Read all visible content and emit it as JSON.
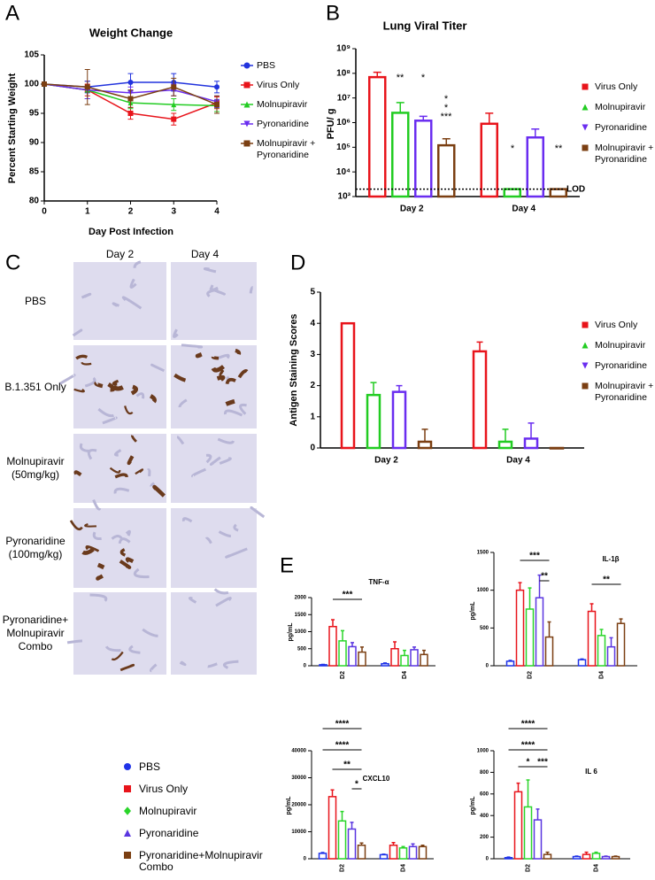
{
  "chart_data": [
    {
      "panel": "A",
      "type": "line",
      "title": "Weight Change",
      "xlabel": "Day Post Infection",
      "ylabel": "Percent Starting Weight",
      "x": [
        0,
        1,
        2,
        3,
        4
      ],
      "xlim": [
        0,
        4
      ],
      "xticks": [
        0,
        1,
        2,
        3,
        4
      ],
      "ylim": [
        80,
        105
      ],
      "yticks": [
        80,
        85,
        90,
        95,
        100,
        105
      ],
      "series": [
        {
          "name": "PBS",
          "color": "#2233dd",
          "marker": "circle",
          "values": [
            100,
            99.5,
            100.3,
            100.3,
            99.5
          ],
          "errors": [
            0,
            1,
            1.5,
            1.5,
            1
          ]
        },
        {
          "name": "Virus Only",
          "color": "#e8141b",
          "marker": "square",
          "values": [
            100,
            99,
            95,
            94,
            96.8
          ],
          "errors": [
            0,
            1,
            1,
            1,
            1
          ]
        },
        {
          "name": "Molnupiravir",
          "color": "#22cc22",
          "marker": "triangle",
          "values": [
            100,
            99,
            96.8,
            96.5,
            96.3
          ],
          "errors": [
            0,
            1.5,
            1,
            1,
            1
          ]
        },
        {
          "name": "Pyronaridine",
          "color": "#6a2df0",
          "marker": "triangle-down",
          "values": [
            100,
            99,
            98.5,
            99,
            97
          ],
          "errors": [
            0,
            1.5,
            1,
            1,
            1
          ]
        },
        {
          "name": "Molnupiravir + Pyronaridine",
          "color": "#7b3f12",
          "marker": "square",
          "values": [
            100,
            99.5,
            97.5,
            99.5,
            96.5
          ],
          "errors": [
            0,
            3,
            1.5,
            1.5,
            1.5
          ]
        }
      ]
    },
    {
      "panel": "B",
      "type": "bar",
      "title": "Lung Viral Titer",
      "ylabel": "PFU/ g",
      "log": true,
      "categories": [
        "Day 2",
        "Day 4"
      ],
      "ylim": [
        1000,
        1000000000
      ],
      "yticks": [
        {
          "value": 1000,
          "label": "10³"
        },
        {
          "value": 10000,
          "label": "10⁴"
        },
        {
          "value": 100000,
          "label": "10⁵"
        },
        {
          "value": 1000000,
          "label": "10⁶"
        },
        {
          "value": 10000000,
          "label": "10⁷"
        },
        {
          "value": 100000000,
          "label": "10⁸"
        },
        {
          "value": 1000000000,
          "label": "10⁹"
        }
      ],
      "reference_line": {
        "value": 2000,
        "label": "LOD"
      },
      "series": [
        {
          "name": "Virus Only",
          "color": "#e8141b",
          "marker": "square",
          "values": [
            70000000,
            900000
          ],
          "errors": [
            40000000,
            1500000
          ]
        },
        {
          "name": "Molnupiravir",
          "color": "#22cc22",
          "marker": "triangle",
          "values": [
            2500000,
            2000
          ],
          "errors": [
            4000000,
            0
          ]
        },
        {
          "name": "Pyronaridine",
          "color": "#6a2df0",
          "marker": "triangle-down",
          "values": [
            1200000,
            250000
          ],
          "errors": [
            600000,
            300000
          ]
        },
        {
          "name": "Molnupiravir + Pyronaridine",
          "color": "#7b3f12",
          "marker": "square",
          "values": [
            120000,
            2000
          ],
          "errors": [
            100000,
            0
          ]
        }
      ],
      "annotations": [
        {
          "text": "**",
          "color": "#e8141b"
        },
        {
          "text": "*",
          "color": "#e8141b"
        },
        {
          "text": "*",
          "color": "#6a2df0"
        },
        {
          "text": "*",
          "color": "#22cc22"
        },
        {
          "text": "***",
          "color": "#e8141b"
        },
        {
          "text": "*",
          "color": "#e8141b"
        },
        {
          "text": "**",
          "color": "#e8141b"
        }
      ]
    },
    {
      "panel": "D",
      "type": "bar",
      "ylabel": "Antigen Staining Scores",
      "categories": [
        "Day 2",
        "Day 4"
      ],
      "ylim": [
        0,
        5
      ],
      "yticks": [
        0,
        1,
        2,
        3,
        4,
        5
      ],
      "series": [
        {
          "name": "Virus Only",
          "color": "#e8141b",
          "marker": "square",
          "values": [
            4,
            3.1
          ],
          "errors": [
            0,
            0.3
          ]
        },
        {
          "name": "Molnupiravir",
          "color": "#22cc22",
          "marker": "triangle",
          "values": [
            1.7,
            0.2
          ],
          "errors": [
            0.4,
            0.4
          ]
        },
        {
          "name": "Pyronaridine",
          "color": "#6a2df0",
          "marker": "triangle-down",
          "values": [
            1.8,
            0.3
          ],
          "errors": [
            0.2,
            0.5
          ]
        },
        {
          "name": "Molnupiravir + Pyronaridine",
          "color": "#7b3f12",
          "marker": "square",
          "values": [
            0.2,
            0
          ],
          "errors": [
            0.4,
            0
          ]
        }
      ]
    },
    {
      "panel": "E",
      "type": "bar",
      "title": "TNF-α",
      "ylabel": "pg/mL",
      "categories": [
        "D2",
        "D4"
      ],
      "ylim": [
        0,
        2000
      ],
      "yticks": [
        0,
        500,
        1000,
        1500,
        2000
      ],
      "series": [
        {
          "name": "PBS",
          "color": "#1f33e8",
          "marker": "circle",
          "values": [
            30,
            60
          ],
          "errors": [
            10,
            20
          ]
        },
        {
          "name": "Virus Only",
          "color": "#e8141b",
          "marker": "square",
          "values": [
            1150,
            500
          ],
          "errors": [
            200,
            200
          ]
        },
        {
          "name": "Molnupiravir",
          "color": "#2ad52a",
          "marker": "diamond",
          "values": [
            730,
            300
          ],
          "errors": [
            300,
            150
          ]
        },
        {
          "name": "Pyronaridine",
          "color": "#5a36e0",
          "marker": "triangle",
          "values": [
            560,
            470
          ],
          "errors": [
            120,
            80
          ]
        },
        {
          "name": "Pyronaridine+Molnupiravir Combo",
          "color": "#7b3f12",
          "marker": "square",
          "values": [
            400,
            330
          ],
          "errors": [
            150,
            120
          ]
        }
      ],
      "annotations": [
        {
          "text": "***"
        }
      ]
    },
    {
      "type": "bar",
      "title": "IL-1β",
      "ylabel": "pg/mL",
      "categories": [
        "D2",
        "D4"
      ],
      "ylim": [
        0,
        1500
      ],
      "yticks": [
        0,
        500,
        1000,
        1500
      ],
      "series": [
        {
          "color": "#1f33e8",
          "values": [
            60,
            80
          ],
          "errors": [
            10,
            10
          ]
        },
        {
          "color": "#e8141b",
          "values": [
            1000,
            720
          ],
          "errors": [
            100,
            100
          ]
        },
        {
          "color": "#2ad52a",
          "values": [
            750,
            400
          ],
          "errors": [
            280,
            80
          ]
        },
        {
          "color": "#5a36e0",
          "values": [
            900,
            250
          ],
          "errors": [
            300,
            120
          ]
        },
        {
          "color": "#7b3f12",
          "values": [
            380,
            560
          ],
          "errors": [
            200,
            60
          ]
        }
      ],
      "annotations": [
        {
          "text": "***"
        },
        {
          "text": "**"
        },
        {
          "text": "**"
        }
      ]
    },
    {
      "type": "bar",
      "title": "CXCL10",
      "ylabel": "pg/mL",
      "categories": [
        "D2",
        "D4"
      ],
      "ylim": [
        0,
        40000
      ],
      "yticks": [
        0,
        10000,
        20000,
        30000,
        40000
      ],
      "series": [
        {
          "color": "#1f33e8",
          "values": [
            2000,
            1500
          ],
          "errors": [
            300,
            200
          ]
        },
        {
          "color": "#e8141b",
          "values": [
            23000,
            5000
          ],
          "errors": [
            2500,
            1000
          ]
        },
        {
          "color": "#2ad52a",
          "values": [
            14000,
            4000
          ],
          "errors": [
            3500,
            500
          ]
        },
        {
          "color": "#5a36e0",
          "values": [
            11000,
            4500
          ],
          "errors": [
            2500,
            1000
          ]
        },
        {
          "color": "#7b3f12",
          "values": [
            5000,
            4500
          ],
          "errors": [
            800,
            500
          ]
        }
      ],
      "annotations": [
        {
          "text": "****"
        },
        {
          "text": "****"
        },
        {
          "text": "**"
        },
        {
          "text": "*"
        }
      ]
    },
    {
      "type": "bar",
      "title": "IL 6",
      "ylabel": "pg/mL",
      "categories": [
        "D2",
        "D4"
      ],
      "ylim": [
        0,
        1000
      ],
      "yticks": [
        0,
        200,
        400,
        600,
        800,
        1000
      ],
      "series": [
        {
          "color": "#1f33e8",
          "values": [
            10,
            20
          ],
          "errors": [
            5,
            5
          ]
        },
        {
          "color": "#e8141b",
          "values": [
            620,
            40
          ],
          "errors": [
            80,
            20
          ]
        },
        {
          "color": "#2ad52a",
          "values": [
            480,
            50
          ],
          "errors": [
            250,
            10
          ]
        },
        {
          "color": "#5a36e0",
          "values": [
            360,
            20
          ],
          "errors": [
            100,
            5
          ]
        },
        {
          "color": "#7b3f12",
          "values": [
            40,
            20
          ],
          "errors": [
            20,
            5
          ]
        }
      ],
      "annotations": [
        {
          "text": "****"
        },
        {
          "text": "****"
        },
        {
          "text": "*"
        },
        {
          "text": "***"
        }
      ]
    }
  ],
  "histology": {
    "panel": "C",
    "columns": [
      "Day 2",
      "Day 4"
    ],
    "rows": [
      [
        "PBS"
      ],
      [
        "B.1.351 Only"
      ],
      [
        "Molnupiravir",
        "(50mg/kg)"
      ],
      [
        "Pyronaridine",
        "(100mg/kg)"
      ],
      [
        "Pyronaridine+",
        "Molnupiravir",
        "Combo"
      ]
    ]
  }
}
